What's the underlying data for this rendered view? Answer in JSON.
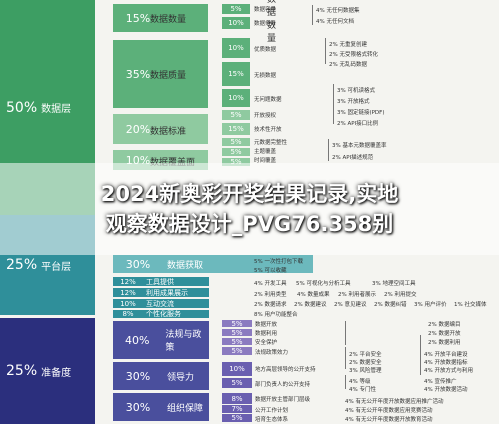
{
  "colors": {
    "green_dark": "#3d9e63",
    "green_mid": "#5cb07a",
    "green_light": "#8fcaa0",
    "teal": "#2f8f9a",
    "teal_light": "#6cb9bd",
    "navy": "#2b2f7d",
    "navy_mid": "#4a4f9d",
    "purple_light": "#8b7bc0"
  },
  "top": {
    "l1": {
      "pct": "50%",
      "name": "数据层"
    },
    "l2": [
      {
        "pct": "15%",
        "name": "数据数量"
      },
      {
        "pct": "35%",
        "name": "数据质量"
      },
      {
        "pct": "20%",
        "name": "数据标准"
      },
      {
        "pct": "10%",
        "name": "数据覆盖面"
      }
    ],
    "l3": [
      {
        "pct": "5%",
        "name": "数据容量"
      },
      {
        "pct": "10%",
        "name": "数据条目"
      },
      {
        "pct": "10%",
        "name": "优质数据"
      },
      {
        "pct": "15%",
        "name": "无损数据"
      },
      {
        "pct": "10%",
        "name": "无问题数据"
      },
      {
        "pct": "5%",
        "name": "开放授权"
      },
      {
        "pct": "15%",
        "name": "技术性开放"
      },
      {
        "pct": "5%",
        "name": "元数据完整性"
      },
      {
        "pct": "5%",
        "name": "主题覆盖"
      },
      {
        "pct": "5%",
        "name": "时间覆盖"
      }
    ],
    "l4": [
      "4% 无任何数据集",
      "4% 无任何文档",
      "2% 无重复创建",
      "2% 无受限格式转化",
      "2% 无乱码数据",
      "3% 可机读格式",
      "3% 开放格式",
      "3% 固定链接(PDF)",
      "2% API接口比例",
      "3% 基本元数据覆盖率",
      "2% API描述规范"
    ]
  },
  "banner": {
    "line1": "2024新奥彩开奖结果记录,实地",
    "line2": "观察数据设计_PVG76.358别"
  },
  "mid": {
    "l1": {
      "pct": "25%",
      "name": "平台层"
    },
    "l2": [
      {
        "pct": "30%",
        "name": "数据获取"
      },
      {
        "pct": "12%",
        "name": "工具提供"
      },
      {
        "pct": "12%",
        "name": "利用成果展示"
      },
      {
        "pct": "10%",
        "name": "互动交流"
      },
      {
        "pct": "8%",
        "name": "个性化服务"
      }
    ],
    "l4": [
      "5% 一次性打包下载",
      "5% 可以收藏",
      "4% 开发工具",
      "5% 可视化与分析工具",
      "3% 地理空间工具",
      "2% 利用类型",
      "4% 数量成果",
      "2% 利用者展示",
      "2% 利用提交",
      "2% 数据请求",
      "2% 数据建议",
      "2% 意见建议",
      "2% 数据纠错",
      "3% 用户评价",
      "1% 社交媒体",
      "8% 用户功能整合"
    ]
  },
  "bot": {
    "l1": {
      "pct": "25%",
      "name": "准备度"
    },
    "l2": [
      {
        "pct": "40%",
        "name": "法规与政策"
      },
      {
        "pct": "30%",
        "name": "领导力"
      },
      {
        "pct": "30%",
        "name": "组织保障"
      }
    ],
    "l3": [
      {
        "pct": "5%",
        "name": "数据开放"
      },
      {
        "pct": "5%",
        "name": "数据利用"
      },
      {
        "pct": "5%",
        "name": "安全保护"
      },
      {
        "pct": "5%",
        "name": "法规政策效力"
      },
      {
        "pct": "10%",
        "name": "地方高层领导的公开支持"
      },
      {
        "pct": "5%",
        "name": "部门负责人的公开支持"
      },
      {
        "pct": "8%",
        "name": "数据开放主管部门层级"
      },
      {
        "pct": "7%",
        "name": "公开工作计划"
      },
      {
        "pct": "5%",
        "name": "培育生态体系"
      }
    ],
    "l4": [
      "2% 数据编目",
      "2% 数据开放",
      "2% 数据利用",
      "2% 平台安全",
      "2% 数据安全",
      "3% 风险管理",
      "4% 等级",
      "4% 专门性",
      "4% 开放平台建设",
      "4% 开放数据指标",
      "4% 开放方式与利用",
      "4% 宣传推广",
      "4% 开放数据活动",
      "4% 有无公开年度开放数据应用推广活动",
      "4% 有无公开年度数据应用竞赛活动",
      "4% 有无公开年度数据开放教育活动"
    ]
  }
}
